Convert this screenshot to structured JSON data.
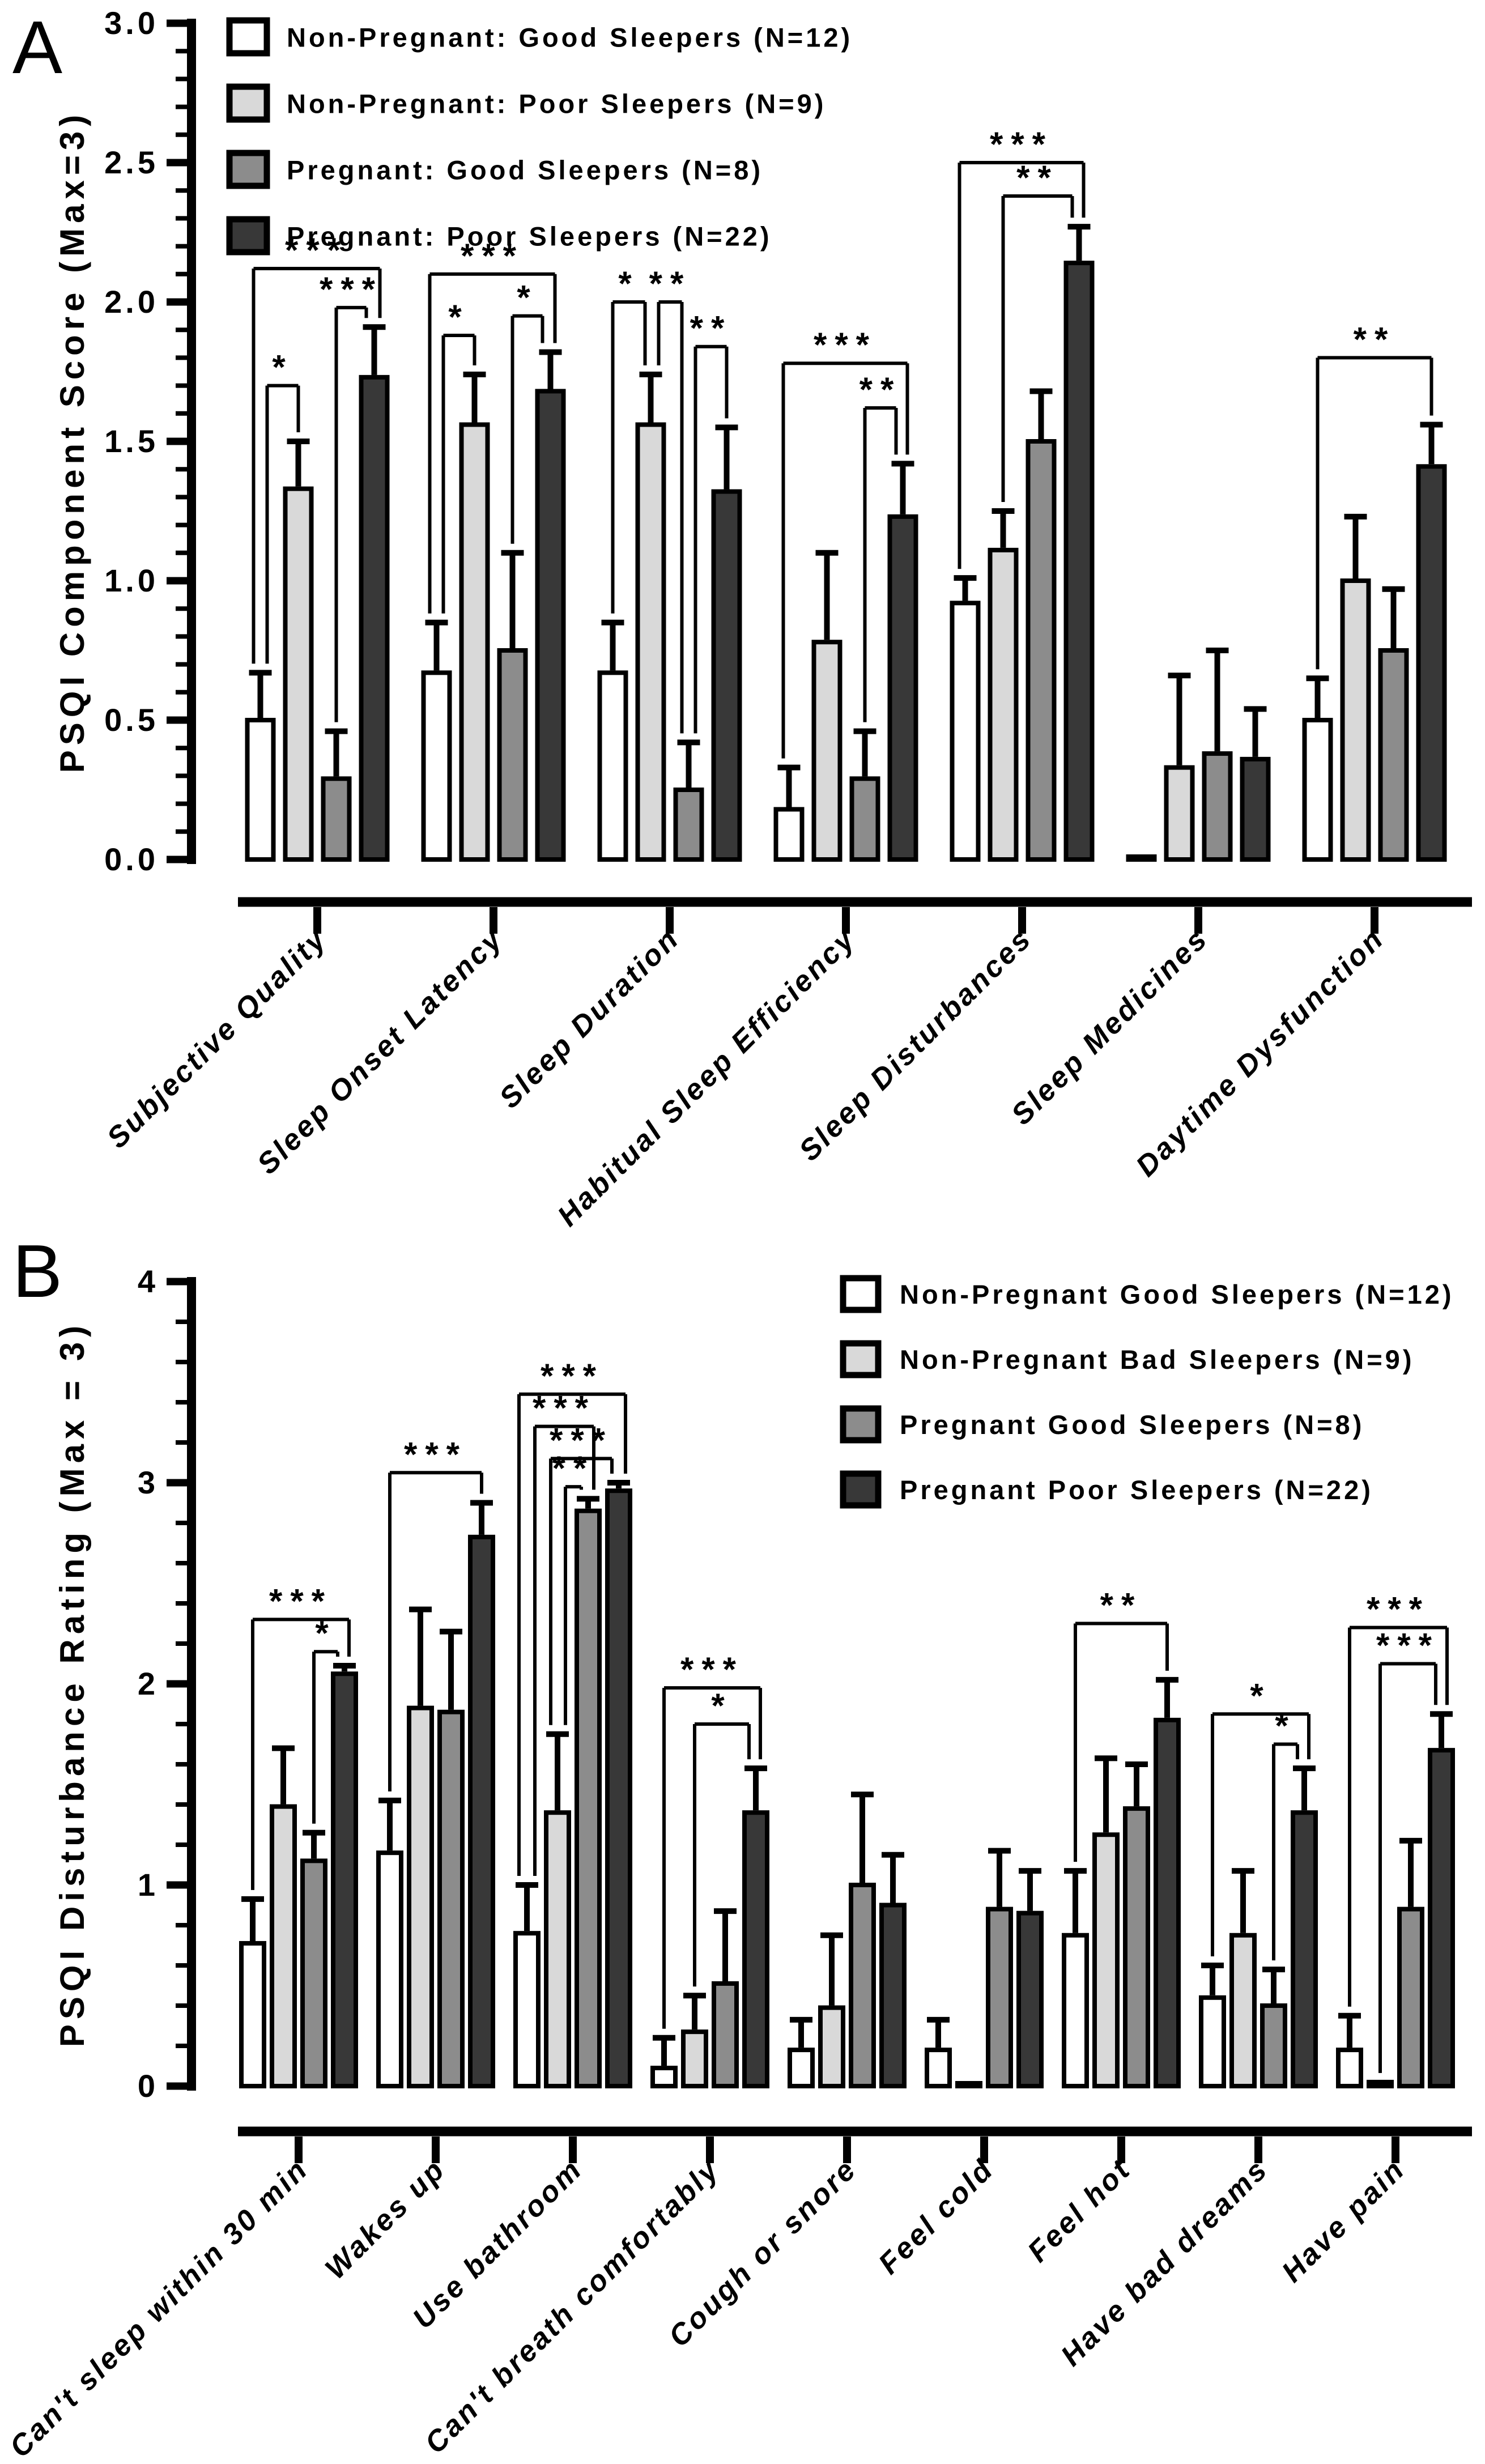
{
  "figure_title": "",
  "chart_data": [
    {
      "id": "panel_a",
      "type": "bar",
      "panel_letter": "A",
      "ylabel": "PSQI Component Score (Max=3)",
      "ylim": [
        0,
        3
      ],
      "ytick_labels": [
        "0.0",
        "0.5",
        "1.0",
        "1.5",
        "2.0",
        "2.5",
        "3.0"
      ],
      "grid": false,
      "legend_position": "inside-top-left",
      "categories": [
        "Subjective Quality",
        "Sleep Onset Latency",
        "Sleep Duration",
        "Habitual Sleep Efficiency",
        "Sleep Disturbances",
        "Sleep Medicines",
        "Daytime Dysfunction"
      ],
      "series": [
        {
          "name": "Non-Pregnant: Good Sleepers (N=12)",
          "color": "#ffffff",
          "values": [
            0.5,
            0.67,
            0.67,
            0.18,
            0.92,
            0.01,
            0.5
          ],
          "errors": [
            0.17,
            0.18,
            0.18,
            0.15,
            0.09,
            0.0,
            0.15
          ]
        },
        {
          "name": "Non-Pregnant: Poor Sleepers (N=9)",
          "color": "#d9d9d9",
          "values": [
            1.33,
            1.56,
            1.56,
            0.78,
            1.11,
            0.33,
            1.0
          ],
          "errors": [
            0.17,
            0.18,
            0.18,
            0.32,
            0.14,
            0.33,
            0.23
          ]
        },
        {
          "name": "Pregnant: Good Sleepers (N=8)",
          "color": "#8c8c8c",
          "values": [
            0.29,
            0.75,
            0.25,
            0.29,
            1.5,
            0.38,
            0.75
          ],
          "errors": [
            0.17,
            0.35,
            0.17,
            0.17,
            0.18,
            0.37,
            0.22
          ]
        },
        {
          "name": "Pregnant: Poor Sleepers (N=22)",
          "color": "#383838",
          "values": [
            1.73,
            1.68,
            1.32,
            1.23,
            2.14,
            0.36,
            1.41
          ],
          "errors": [
            0.18,
            0.14,
            0.23,
            0.19,
            0.13,
            0.18,
            0.15
          ]
        }
      ],
      "significance": [
        {
          "group": 0,
          "from": 0,
          "to": 1,
          "level": 1.7,
          "label": "*",
          "dxF": 12,
          "dxT": 0
        },
        {
          "group": 0,
          "from": 0,
          "to": 3,
          "level": 2.12,
          "label": "***",
          "dxF": -12,
          "dxT": 10
        },
        {
          "group": 0,
          "from": 2,
          "to": 3,
          "level": 1.98,
          "label": "***",
          "dxF": 0,
          "dxT": -14
        },
        {
          "group": 1,
          "from": 0,
          "to": 1,
          "level": 1.88,
          "label": "*",
          "dxF": 12,
          "dxT": 0
        },
        {
          "group": 1,
          "from": 0,
          "to": 3,
          "level": 2.1,
          "label": "***",
          "dxF": -12,
          "dxT": 8
        },
        {
          "group": 1,
          "from": 2,
          "to": 3,
          "level": 1.95,
          "label": "*",
          "dxF": 0,
          "dxT": -14
        },
        {
          "group": 2,
          "from": 0,
          "to": 1,
          "level": 2.0,
          "label": "*",
          "dxF": 0,
          "dxT": -10
        },
        {
          "group": 2,
          "from": 1,
          "to": 2,
          "level": 2.0,
          "label": "**",
          "dxF": 14,
          "dxT": -12
        },
        {
          "group": 2,
          "from": 2,
          "to": 3,
          "level": 1.84,
          "label": "**",
          "dxF": 12,
          "dxT": 0
        },
        {
          "group": 3,
          "from": 0,
          "to": 3,
          "level": 1.78,
          "label": "***",
          "dxF": -10,
          "dxT": 8
        },
        {
          "group": 3,
          "from": 2,
          "to": 3,
          "level": 1.62,
          "label": "**",
          "dxF": 0,
          "dxT": -12
        },
        {
          "group": 4,
          "from": 0,
          "to": 3,
          "level": 2.5,
          "label": "***",
          "dxF": -10,
          "dxT": 8
        },
        {
          "group": 4,
          "from": 1,
          "to": 3,
          "level": 2.38,
          "label": "**",
          "dxF": 0,
          "dxT": -12
        },
        {
          "group": 6,
          "from": 0,
          "to": 3,
          "level": 1.8,
          "label": "**",
          "dxF": 0,
          "dxT": 0
        }
      ]
    },
    {
      "id": "panel_b",
      "type": "bar",
      "panel_letter": "B",
      "ylabel": "PSQI Disturbance Rating (Max = 3)",
      "ylim": [
        0,
        4
      ],
      "ytick_labels": [
        "0",
        "1",
        "2",
        "3",
        "4"
      ],
      "grid": false,
      "legend_position": "inside-top-right",
      "categories": [
        "Can't sleep within 30 min",
        "Wakes up",
        "Use bathroom",
        "Can't breath comfortably",
        "Cough or snore",
        "Feel cold",
        "Feel hot",
        "Have bad dreams",
        "Have pain"
      ],
      "series": [
        {
          "name": "Non-Pregnant Good Sleepers (N=12)",
          "color": "#ffffff",
          "values": [
            0.71,
            1.16,
            0.76,
            0.09,
            0.18,
            0.18,
            0.75,
            0.44,
            0.18
          ],
          "errors": [
            0.22,
            0.26,
            0.24,
            0.15,
            0.15,
            0.15,
            0.32,
            0.16,
            0.17
          ]
        },
        {
          "name": "Non-Pregnant Bad Sleepers (N=9)",
          "color": "#d9d9d9",
          "values": [
            1.39,
            1.88,
            1.36,
            0.27,
            0.39,
            0.01,
            1.25,
            0.75,
            0.02
          ],
          "errors": [
            0.29,
            0.49,
            0.39,
            0.18,
            0.36,
            0.0,
            0.38,
            0.32,
            0.0
          ]
        },
        {
          "name": "Pregnant Good Sleepers (N=8)",
          "color": "#8c8c8c",
          "values": [
            1.12,
            1.86,
            2.86,
            0.51,
            1.0,
            0.88,
            1.38,
            0.4,
            0.88
          ],
          "errors": [
            0.14,
            0.4,
            0.06,
            0.36,
            0.45,
            0.29,
            0.22,
            0.18,
            0.34
          ]
        },
        {
          "name": "Pregnant Poor Sleepers (N=22)",
          "color": "#383838",
          "values": [
            2.05,
            2.73,
            2.96,
            1.36,
            0.9,
            0.86,
            1.82,
            1.36,
            1.67
          ],
          "errors": [
            0.04,
            0.17,
            0.04,
            0.22,
            0.25,
            0.21,
            0.2,
            0.22,
            0.18
          ]
        }
      ],
      "significance": [
        {
          "group": 0,
          "from": 0,
          "to": 3,
          "level": 2.32,
          "label": "***",
          "dxF": 0,
          "dxT": 8
        },
        {
          "group": 0,
          "from": 2,
          "to": 3,
          "level": 2.16,
          "label": "*",
          "dxF": 0,
          "dxT": -12
        },
        {
          "group": 1,
          "from": 0,
          "to": 3,
          "level": 3.05,
          "label": "***",
          "dxF": 0,
          "dxT": 0
        },
        {
          "group": 2,
          "from": 0,
          "to": 3,
          "level": 3.44,
          "label": "***",
          "dxF": -14,
          "dxT": 12
        },
        {
          "group": 2,
          "from": 0,
          "to": 2,
          "level": 3.28,
          "label": "***",
          "dxF": 14,
          "dxT": 10
        },
        {
          "group": 2,
          "from": 1,
          "to": 3,
          "level": 3.12,
          "label": "***",
          "dxF": -12,
          "dxT": -12
        },
        {
          "group": 2,
          "from": 1,
          "to": 2,
          "level": 2.98,
          "label": "**",
          "dxF": 14,
          "dxT": -12
        },
        {
          "group": 3,
          "from": 0,
          "to": 3,
          "level": 1.98,
          "label": "***",
          "dxF": 0,
          "dxT": 8
        },
        {
          "group": 3,
          "from": 1,
          "to": 3,
          "level": 1.8,
          "label": "*",
          "dxF": 0,
          "dxT": -12
        },
        {
          "group": 6,
          "from": 0,
          "to": 3,
          "level": 2.3,
          "label": "**",
          "dxF": 0,
          "dxT": 0
        },
        {
          "group": 7,
          "from": 0,
          "to": 3,
          "level": 1.85,
          "label": "*",
          "dxF": 0,
          "dxT": 8
        },
        {
          "group": 7,
          "from": 2,
          "to": 3,
          "level": 1.7,
          "label": "*",
          "dxF": 0,
          "dxT": -12
        },
        {
          "group": 8,
          "from": 0,
          "to": 3,
          "level": 2.28,
          "label": "***",
          "dxF": 0,
          "dxT": 10
        },
        {
          "group": 8,
          "from": 1,
          "to": 3,
          "level": 2.1,
          "label": "***",
          "dxF": 0,
          "dxT": -10
        }
      ]
    }
  ]
}
